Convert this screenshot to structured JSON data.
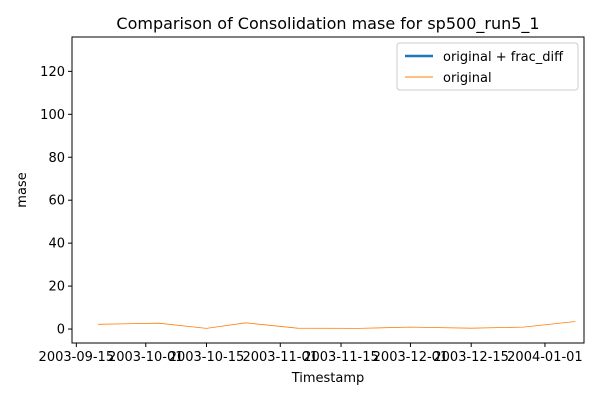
{
  "chart_data": {
    "type": "line",
    "title": "Comparison of Consolidation mase for sp500_run5_1",
    "xlabel": "Timestamp",
    "ylabel": "mase",
    "x_ticks": [
      "2003-09-15",
      "2003-10-01",
      "2003-10-15",
      "2003-11-01",
      "2003-11-15",
      "2003-12-01",
      "2003-12-15",
      "2004-01-01"
    ],
    "y_ticks": [
      0,
      20,
      40,
      60,
      80,
      100,
      120
    ],
    "xlim": [
      "2003-09-14",
      "2004-01-10"
    ],
    "ylim": [
      -6.5,
      136
    ],
    "legend_position": "top-right",
    "series": [
      {
        "name": "original + frac_diff",
        "color": "#1f77b4",
        "x": [],
        "y": []
      },
      {
        "name": "original",
        "color": "#ff7f0e",
        "x": [
          "2003-09-20",
          "2003-10-04",
          "2003-10-15",
          "2003-10-24",
          "2003-11-05",
          "2003-11-19",
          "2003-12-01",
          "2003-12-15",
          "2003-12-27",
          "2004-01-08"
        ],
        "y": [
          2.2,
          2.7,
          0.3,
          2.9,
          0.4,
          0.3,
          0.9,
          0.4,
          0.9,
          3.5
        ]
      }
    ]
  }
}
